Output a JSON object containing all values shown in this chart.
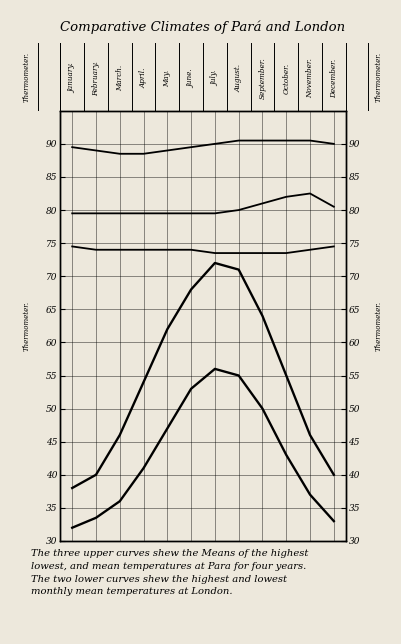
{
  "title": "Comparative Climates of Pará and London",
  "months": [
    "January",
    "February",
    "March",
    "April",
    "May",
    "June",
    "July",
    "August",
    "September",
    "October",
    "November",
    "December"
  ],
  "para_highest": [
    89.5,
    89.0,
    88.5,
    88.5,
    89.0,
    89.5,
    90.0,
    90.5,
    90.5,
    90.5,
    90.5,
    90.0
  ],
  "para_mean": [
    79.5,
    79.5,
    79.5,
    79.5,
    79.5,
    79.5,
    79.5,
    80.0,
    81.0,
    82.0,
    82.5,
    80.5
  ],
  "para_lowest": [
    74.5,
    74.0,
    74.0,
    74.0,
    74.0,
    74.0,
    73.5,
    73.5,
    73.5,
    73.5,
    74.0,
    74.5
  ],
  "london_highest": [
    38.0,
    40.0,
    46.0,
    54.0,
    62.0,
    68.0,
    72.0,
    71.0,
    64.0,
    55.0,
    46.0,
    40.0
  ],
  "london_lowest": [
    32.0,
    33.5,
    36.0,
    41.0,
    47.0,
    53.0,
    56.0,
    55.0,
    50.0,
    43.0,
    37.0,
    33.0
  ],
  "ylim": [
    30,
    95
  ],
  "yticks": [
    30,
    35,
    40,
    45,
    50,
    55,
    60,
    65,
    70,
    75,
    80,
    85,
    90
  ],
  "bg_color": "#ede8dc",
  "line_color": "#111111",
  "caption_lines": [
    "The three upper curves shew the Means of the highest",
    "lowest, and mean temperatures at Para for four years.",
    "The two lower curves shew the highest and lowest",
    "monthly mean temperatures at London."
  ]
}
